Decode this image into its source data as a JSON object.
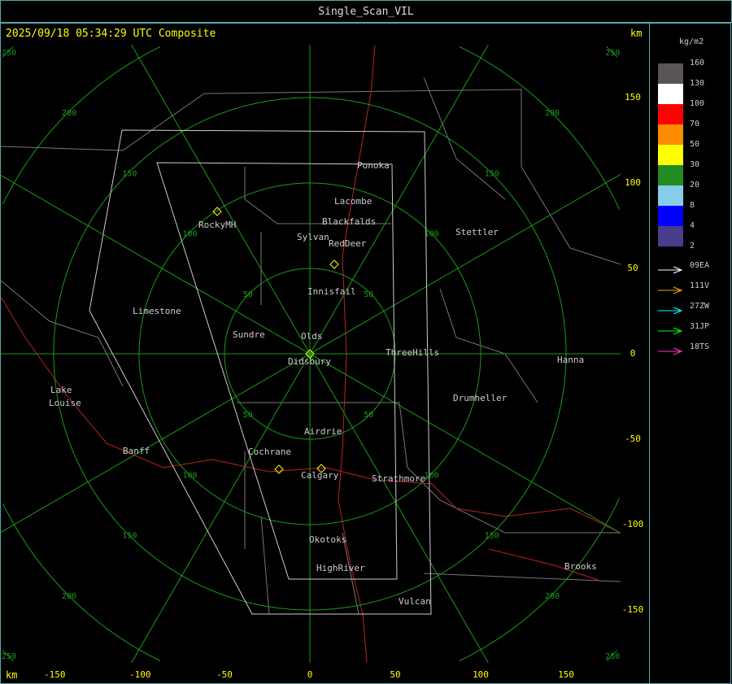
{
  "title": "Single_Scan_VIL",
  "timestamp": "2025/09/18 05:34:29 UTC Composite",
  "km_label": "km",
  "axis": {
    "x_ticks": [
      -150,
      -100,
      -50,
      0,
      50,
      100,
      150
    ],
    "y_ticks": [
      150,
      100,
      50,
      0,
      -50,
      -100,
      -150
    ],
    "ring_labels": [
      50,
      100,
      150,
      200,
      250
    ]
  },
  "legend": {
    "unit": "kg/m2",
    "levels": [
      {
        "label": "160",
        "color": "#5a5555"
      },
      {
        "label": "130",
        "color": "#ffffff"
      },
      {
        "label": "100",
        "color": "#ff0000"
      },
      {
        "label": "70",
        "color": "#ff8c00"
      },
      {
        "label": "50",
        "color": "#ffff00"
      },
      {
        "label": "30",
        "color": "#228b22"
      },
      {
        "label": "20",
        "color": "#87ceeb"
      },
      {
        "label": "8",
        "color": "#0000ff"
      },
      {
        "label": "4",
        "color": "#483d8b"
      },
      {
        "label": "2",
        "color": ""
      }
    ],
    "radars": [
      {
        "label": "09EA",
        "color": "#ffffff"
      },
      {
        "label": "111V",
        "color": "#ffa500"
      },
      {
        "label": "27ZW",
        "color": "#00ffff"
      },
      {
        "label": "31JP",
        "color": "#00ff00"
      },
      {
        "label": "18TS",
        "color": "#ff33cc"
      }
    ]
  },
  "cities": [
    "Ponoka",
    "Lacombe",
    "Blackfalds",
    "Sylvan",
    "RedDeer",
    "RockyMH",
    "Stettler",
    "Innisfail",
    "Limestone",
    "Sundre",
    "Olds",
    "Didsbury",
    "ThreeHills",
    "Hanna",
    "Drumheller",
    "Lake",
    "Louise",
    "Airdrie",
    "Banff",
    "Cochrane",
    "Calgary",
    "Strathmore",
    "Okotoks",
    "HighRiver",
    "Brooks",
    "Vulcan"
  ]
}
